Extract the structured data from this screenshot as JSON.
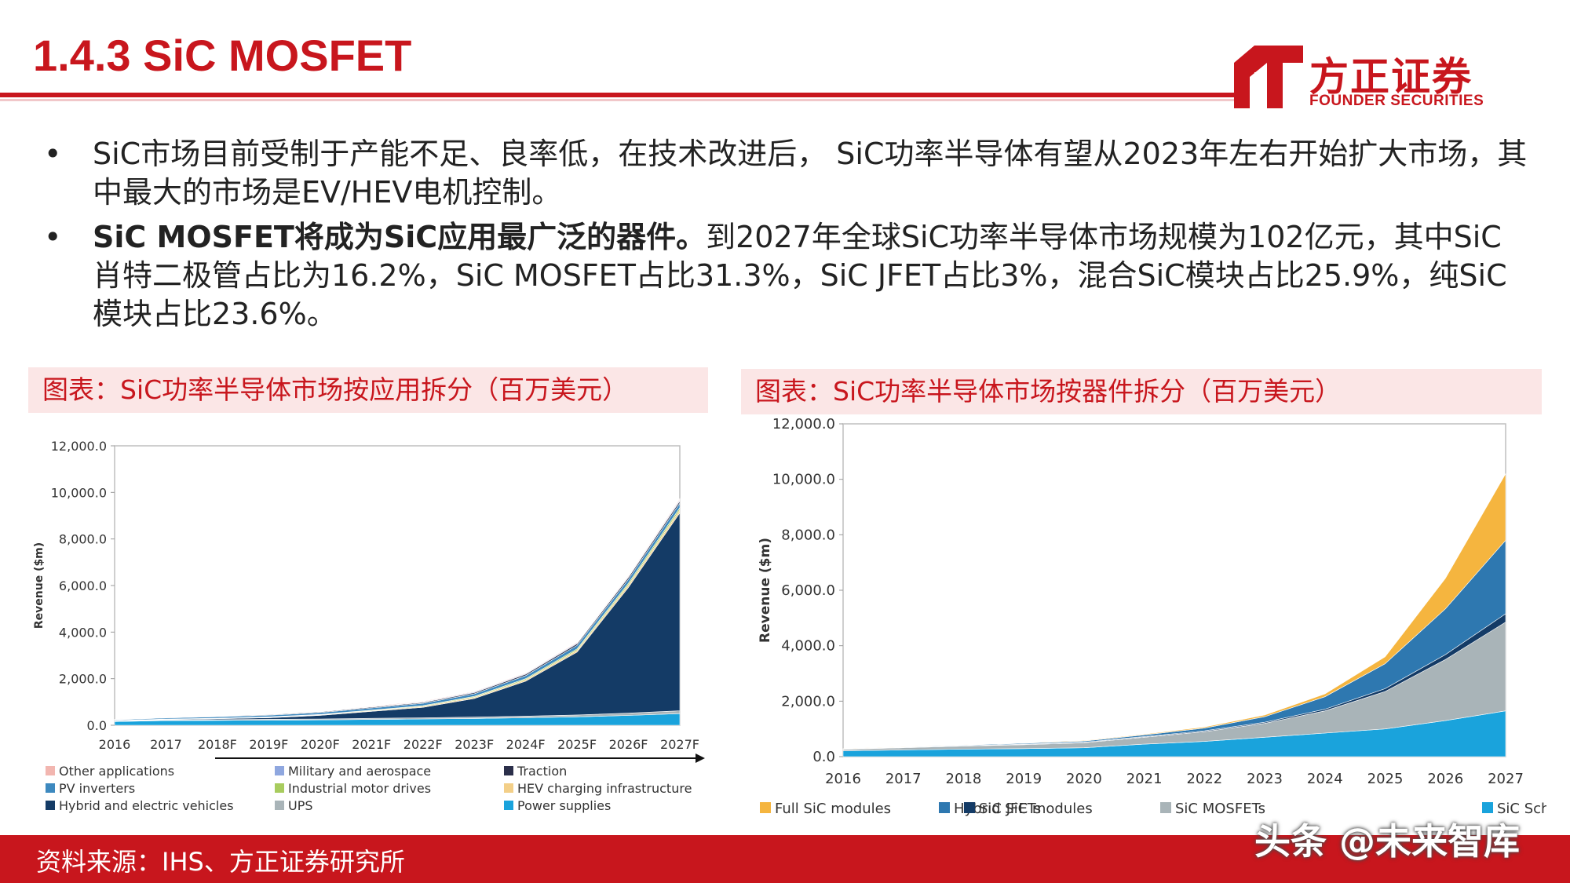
{
  "page": {
    "title": "1.4.3 SiC MOSFET",
    "logo": {
      "name": "方正证券",
      "sub": "FOUNDER SECURITIES"
    },
    "bullets": [
      {
        "bold": "",
        "text": "SiC市场目前受制于产能不足、良率低，在技术改进后，   SiC功率半导体有望从2023年左右开始扩大市场，其中最大的市场是EV/HEV电机控制。"
      },
      {
        "bold": "SiC MOSFET将成为SiC应用最广泛的器件。",
        "text": "到2027年全球SiC功率半导体市场规模为102亿元，其中SiC肖特二极管占比为16.2%，SiC MOSFET占比31.3%，SiC JFET占比3%，混合SiC模块占比25.9%，纯SiC模块占比23.6%。"
      }
    ],
    "caption_left": "图表：SiC功率半导体市场按应用拆分（百万美元）",
    "caption_right": "图表：SiC功率半导体市场按器件拆分（百万美元）",
    "footer_source": "资料来源：IHS、方正证券研究所",
    "watermark": "头条 @未来智库"
  },
  "chart_data": [
    {
      "type": "area",
      "stacked": true,
      "title": "",
      "xlabel": "",
      "ylabel": "Revenue ($m)",
      "ylim": [
        0,
        12000
      ],
      "yticks": [
        "0.0",
        "2,000.0",
        "4,000.0",
        "6,000.0",
        "8,000.0",
        "10,000.0",
        "12,000.0"
      ],
      "x": [
        "2016",
        "2017",
        "2018F",
        "2019F",
        "2020F",
        "2021F",
        "2022F",
        "2023F",
        "2024F",
        "2025F",
        "2026F",
        "2027F"
      ],
      "legend_position": "bottom",
      "legend_order": [
        "Other applications",
        "Military and aerospace",
        "Traction",
        "PV inverters",
        "Industrial motor drives",
        "HEV charging infrastructure",
        "Hybrid and electric vehicles",
        "UPS",
        "Power supplies"
      ],
      "series": [
        {
          "name": "Power supplies",
          "color": "#1aa3dc",
          "values": [
            160,
            200,
            210,
            220,
            230,
            250,
            270,
            290,
            320,
            360,
            420,
            500
          ]
        },
        {
          "name": "UPS",
          "color": "#a9b4b8",
          "values": [
            20,
            25,
            30,
            35,
            40,
            45,
            50,
            60,
            70,
            80,
            100,
            120
          ]
        },
        {
          "name": "Hybrid and electric vehicles",
          "color": "#143b66",
          "values": [
            10,
            20,
            40,
            70,
            150,
            300,
            450,
            800,
            1500,
            2700,
            5400,
            8500
          ]
        },
        {
          "name": "HEV charging infrastructure",
          "color": "#f3cf88",
          "values": [
            5,
            10,
            15,
            20,
            25,
            30,
            40,
            50,
            60,
            80,
            100,
            120
          ]
        },
        {
          "name": "Industrial motor drives",
          "color": "#a8cc5e",
          "values": [
            5,
            10,
            10,
            15,
            20,
            25,
            30,
            40,
            50,
            60,
            80,
            100
          ]
        },
        {
          "name": "PV inverters",
          "color": "#3d89bf",
          "values": [
            30,
            50,
            60,
            70,
            80,
            90,
            100,
            110,
            130,
            150,
            170,
            200
          ]
        },
        {
          "name": "Traction",
          "color": "#2b2f4a",
          "values": [
            10,
            15,
            20,
            25,
            30,
            35,
            40,
            50,
            60,
            70,
            80,
            90
          ]
        },
        {
          "name": "Military and aerospace",
          "color": "#8fa7df",
          "values": [
            10,
            12,
            15,
            18,
            20,
            22,
            25,
            28,
            30,
            35,
            40,
            50
          ]
        },
        {
          "name": "Other applications",
          "color": "#f2b6b0",
          "values": [
            10,
            12,
            15,
            18,
            20,
            22,
            25,
            28,
            30,
            35,
            40,
            50
          ]
        }
      ]
    },
    {
      "type": "area",
      "stacked": true,
      "title": "",
      "xlabel": "",
      "ylabel": "Revenue ($m)",
      "ylim": [
        0,
        12000
      ],
      "yticks": [
        "0.0",
        "2,000.0",
        "4,000.0",
        "6,000.0",
        "8,000.0",
        "10,000.0",
        "12,000.0"
      ],
      "x": [
        "2016",
        "2017",
        "2018",
        "2019",
        "2020",
        "2021",
        "2022",
        "2023",
        "2024",
        "2025",
        "2026",
        "2027"
      ],
      "legend_position": "bottom",
      "legend_order": [
        "Full SiC modules",
        "Hybrid SiC modules",
        "SiC JFETs",
        "SiC MOSFETs",
        "SiC Schottky barrier diodes"
      ],
      "series": [
        {
          "name": "SiC Schottky barrier diodes",
          "color": "#1aa3dc",
          "values": [
            210,
            240,
            270,
            290,
            320,
            450,
            550,
            700,
            850,
            1000,
            1300,
            1650
          ]
        },
        {
          "name": "SiC MOSFETs",
          "color": "#a9b4b8",
          "values": [
            50,
            80,
            110,
            140,
            180,
            250,
            350,
            500,
            800,
            1350,
            2200,
            3200
          ]
        },
        {
          "name": "SiC JFETs",
          "color": "#143b66",
          "values": [
            10,
            15,
            15,
            20,
            20,
            25,
            30,
            40,
            60,
            100,
            180,
            300
          ]
        },
        {
          "name": "Hybrid SiC modules",
          "color": "#2e78b0",
          "values": [
            10,
            15,
            20,
            30,
            40,
            60,
            100,
            200,
            450,
            900,
            1650,
            2650
          ]
        },
        {
          "name": "Full SiC modules",
          "color": "#f5b53f",
          "values": [
            5,
            8,
            10,
            15,
            20,
            25,
            40,
            60,
            100,
            250,
            1100,
            2400
          ]
        }
      ]
    }
  ]
}
